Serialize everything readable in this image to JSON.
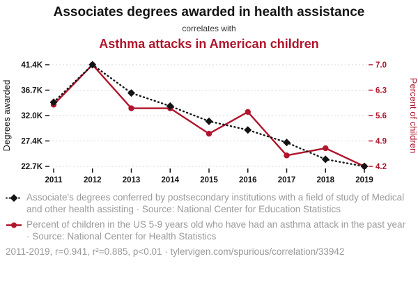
{
  "header": {
    "title": "Associates degrees awarded in health assistance",
    "subtitle": "correlates with",
    "title2": "Asthma attacks in American children"
  },
  "colors": {
    "black": "#141414",
    "red": "#b0152c",
    "grid": "#d8d8d8",
    "legend_text": "#9a9a9a"
  },
  "chart_data": {
    "type": "line",
    "x": [
      2011,
      2012,
      2013,
      2014,
      2015,
      2016,
      2017,
      2018,
      2019
    ],
    "x_axis": {
      "ticks": [
        "2011",
        "2012",
        "2013",
        "2014",
        "2015",
        "2016",
        "2017",
        "2018",
        "2019"
      ]
    },
    "left_axis": {
      "label": "Degrees awarded",
      "min": 22700,
      "max": 41400,
      "ticks": [
        "22.7K",
        "27.4K",
        "32.0K",
        "36.7K",
        "41.4K"
      ]
    },
    "right_axis": {
      "label": "Percent of children",
      "min": 4.2,
      "max": 7.0,
      "ticks": [
        "4.2",
        "4.9",
        "5.6",
        "6.3",
        "7.0"
      ]
    },
    "grid": true,
    "legend_position": "bottom",
    "series": [
      {
        "name": "Associate's degrees conferred in Medical and other health assisting",
        "axis": "left",
        "marker": "diamond",
        "line_style": "dotted",
        "color": "#141414",
        "values": [
          34500,
          41400,
          36200,
          33800,
          31000,
          29400,
          27100,
          24000,
          22700
        ]
      },
      {
        "name": "Percent of children 5-9 who had an asthma attack in the past year",
        "axis": "right",
        "marker": "circle",
        "line_style": "solid",
        "color": "#b0152c",
        "values": [
          5.9,
          7.0,
          5.8,
          5.8,
          5.1,
          5.7,
          4.5,
          4.7,
          4.2
        ]
      }
    ]
  },
  "legend": {
    "items": [
      {
        "marker": "black-diamond-dotted-line",
        "text": "Associate's degrees conferred by postsecondary institutions with a field of study of Medical and other health assisting · Source: National Center for Education Statistics"
      },
      {
        "marker": "red-circle-solid-line",
        "text": "Percent of children in the US 5-9 years old who have had an asthma attack in the past year · Source: National Center for Health Statistics"
      }
    ],
    "footer": "2011-2019, r=0.941, r²=0.885, p<0.01 · tylervigen.com/spurious/correlation/33942"
  }
}
